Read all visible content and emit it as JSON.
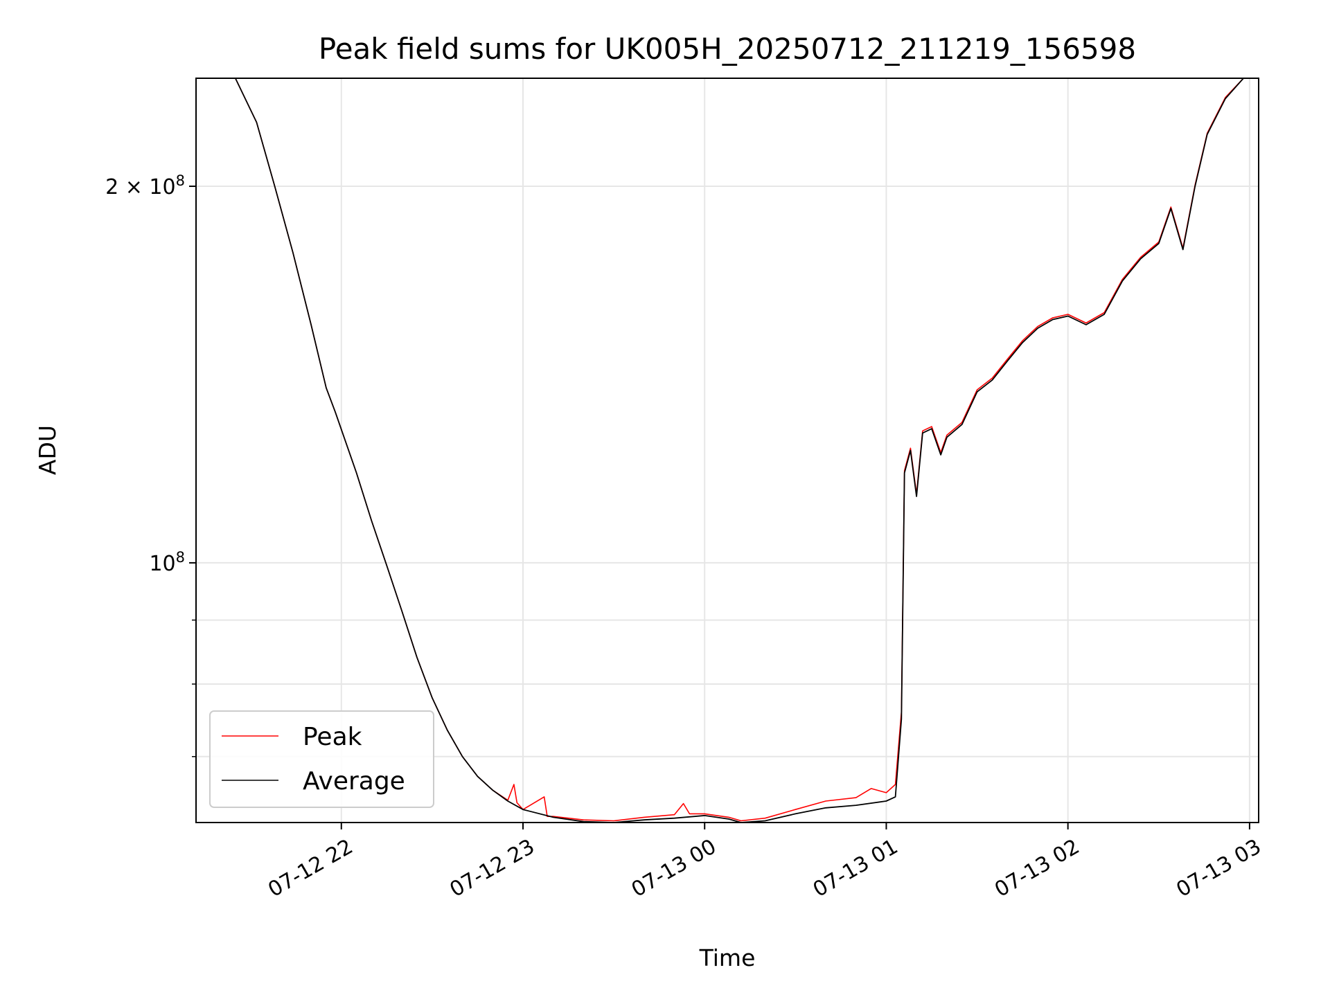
{
  "chart_data": {
    "type": "line",
    "title": "Peak field sums for UK005H_20250712_211219_156598",
    "xlabel": "Time",
    "ylabel": "ADU",
    "x_unit": "datetime",
    "xlim": [
      "2025-07-12 21:12",
      "2025-07-13 03:03"
    ],
    "ylim": [
      62000000,
      244000000
    ],
    "yscale": "log",
    "grid": true,
    "legend_position": "lower left",
    "x_tick_labels": [
      "07-12 22",
      "07-12 23",
      "07-13 00",
      "07-13 01",
      "07-13 02",
      "07-13 03"
    ],
    "x_ticks": [
      "2025-07-12 22:00",
      "2025-07-12 23:00",
      "2025-07-13 00:00",
      "2025-07-13 01:00",
      "2025-07-13 02:00",
      "2025-07-13 03:00"
    ],
    "y_major_ticks": [
      {
        "value": 100000000,
        "label_base": "10",
        "label_exp": "8"
      },
      {
        "value": 200000000,
        "label_base": "2 × 10",
        "label_exp": "8"
      }
    ],
    "y_minor_ticks": [
      60000000,
      70000000,
      80000000,
      90000000,
      300000000
    ],
    "series": [
      {
        "name": "Average",
        "color": "#000000",
        "x": [
          "2025-07-12 21:12",
          "2025-07-12 21:25",
          "2025-07-12 21:32",
          "2025-07-12 21:38",
          "2025-07-12 21:44",
          "2025-07-12 21:50",
          "2025-07-12 21:55",
          "2025-07-12 21:58",
          "2025-07-12 22:05",
          "2025-07-12 22:10",
          "2025-07-12 22:15",
          "2025-07-12 22:20",
          "2025-07-12 22:25",
          "2025-07-12 22:30",
          "2025-07-12 22:35",
          "2025-07-12 22:40",
          "2025-07-12 22:45",
          "2025-07-12 22:50",
          "2025-07-12 22:55",
          "2025-07-12 23:00",
          "2025-07-12 23:10",
          "2025-07-12 23:20",
          "2025-07-12 23:30",
          "2025-07-12 23:40",
          "2025-07-12 23:50",
          "2025-07-13 00:00",
          "2025-07-13 00:08",
          "2025-07-13 00:12",
          "2025-07-13 00:20",
          "2025-07-13 00:30",
          "2025-07-13 00:40",
          "2025-07-13 00:50",
          "2025-07-13 01:00",
          "2025-07-13 01:03",
          "2025-07-13 01:05",
          "2025-07-13 01:06",
          "2025-07-13 01:08",
          "2025-07-13 01:10",
          "2025-07-13 01:12",
          "2025-07-13 01:15",
          "2025-07-13 01:18",
          "2025-07-13 01:20",
          "2025-07-13 01:25",
          "2025-07-13 01:30",
          "2025-07-13 01:35",
          "2025-07-13 01:40",
          "2025-07-13 01:45",
          "2025-07-13 01:50",
          "2025-07-13 01:55",
          "2025-07-13 02:00",
          "2025-07-13 02:06",
          "2025-07-13 02:12",
          "2025-07-13 02:18",
          "2025-07-13 02:24",
          "2025-07-13 02:30",
          "2025-07-13 02:34",
          "2025-07-13 02:38",
          "2025-07-13 02:42",
          "2025-07-13 02:46",
          "2025-07-13 02:52",
          "2025-07-13 02:58"
        ],
        "values": [
          244000000,
          244000000,
          225000000,
          200000000,
          177000000,
          155000000,
          138000000,
          132000000,
          118000000,
          108000000,
          99500000,
          91500000,
          84000000,
          78000000,
          73500000,
          70000000,
          67500000,
          65800000,
          64500000,
          63500000,
          62600000,
          62100000,
          62000000,
          62300000,
          62500000,
          62800000,
          62400000,
          62000000,
          62200000,
          63000000,
          63700000,
          64000000,
          64500000,
          65000000,
          75000000,
          118000000,
          123000000,
          113000000,
          127000000,
          128000000,
          122000000,
          126000000,
          129000000,
          137000000,
          140000000,
          145000000,
          150000000,
          154000000,
          156500000,
          157500000,
          155000000,
          158000000,
          168000000,
          175000000,
          180000000,
          192000000,
          178000000,
          200000000,
          220000000,
          235000000,
          244000000
        ]
      },
      {
        "name": "Peak",
        "color": "#ff0000",
        "x": [
          "2025-07-12 21:12",
          "2025-07-12 21:25",
          "2025-07-12 21:32",
          "2025-07-12 21:38",
          "2025-07-12 21:44",
          "2025-07-12 21:50",
          "2025-07-12 21:55",
          "2025-07-12 21:58",
          "2025-07-12 22:05",
          "2025-07-12 22:10",
          "2025-07-12 22:15",
          "2025-07-12 22:20",
          "2025-07-12 22:25",
          "2025-07-12 22:30",
          "2025-07-12 22:35",
          "2025-07-12 22:40",
          "2025-07-12 22:45",
          "2025-07-12 22:50",
          "2025-07-12 22:55",
          "2025-07-12 22:57",
          "2025-07-12 22:58",
          "2025-07-12 23:00",
          "2025-07-12 23:07",
          "2025-07-12 23:08",
          "2025-07-12 23:10",
          "2025-07-12 23:20",
          "2025-07-12 23:30",
          "2025-07-12 23:40",
          "2025-07-12 23:50",
          "2025-07-12 23:53",
          "2025-07-12 23:55",
          "2025-07-13 00:00",
          "2025-07-13 00:08",
          "2025-07-13 00:12",
          "2025-07-13 00:20",
          "2025-07-13 00:30",
          "2025-07-13 00:40",
          "2025-07-13 00:50",
          "2025-07-13 00:55",
          "2025-07-13 01:00",
          "2025-07-13 01:03",
          "2025-07-13 01:05",
          "2025-07-13 01:06",
          "2025-07-13 01:08",
          "2025-07-13 01:10",
          "2025-07-13 01:12",
          "2025-07-13 01:15",
          "2025-07-13 01:18",
          "2025-07-13 01:20",
          "2025-07-13 01:25",
          "2025-07-13 01:30",
          "2025-07-13 01:35",
          "2025-07-13 01:40",
          "2025-07-13 01:45",
          "2025-07-13 01:50",
          "2025-07-13 01:55",
          "2025-07-13 02:00",
          "2025-07-13 02:06",
          "2025-07-13 02:12",
          "2025-07-13 02:18",
          "2025-07-13 02:24",
          "2025-07-13 02:30",
          "2025-07-13 02:34",
          "2025-07-13 02:38",
          "2025-07-13 02:42",
          "2025-07-13 02:46",
          "2025-07-13 02:52",
          "2025-07-13 02:58"
        ],
        "values": [
          244000000,
          244000000,
          225000000,
          200000000,
          177000000,
          155000000,
          138000000,
          132000000,
          118000000,
          108000000,
          99500000,
          91500000,
          84000000,
          78000000,
          73500000,
          70000000,
          67500000,
          65800000,
          64600000,
          66500000,
          64300000,
          63500000,
          65000000,
          62700000,
          62700000,
          62300000,
          62200000,
          62600000,
          62900000,
          64200000,
          63000000,
          63000000,
          62600000,
          62200000,
          62500000,
          63500000,
          64500000,
          64900000,
          66000000,
          65500000,
          66500000,
          76000000,
          118500000,
          123500000,
          113500000,
          127500000,
          128500000,
          122500000,
          126500000,
          129500000,
          137500000,
          140500000,
          145500000,
          150500000,
          154500000,
          157000000,
          158000000,
          155500000,
          158500000,
          168500000,
          175500000,
          180500000,
          192500000,
          178500000,
          200500000,
          220500000,
          235500000,
          244000000
        ]
      }
    ]
  }
}
